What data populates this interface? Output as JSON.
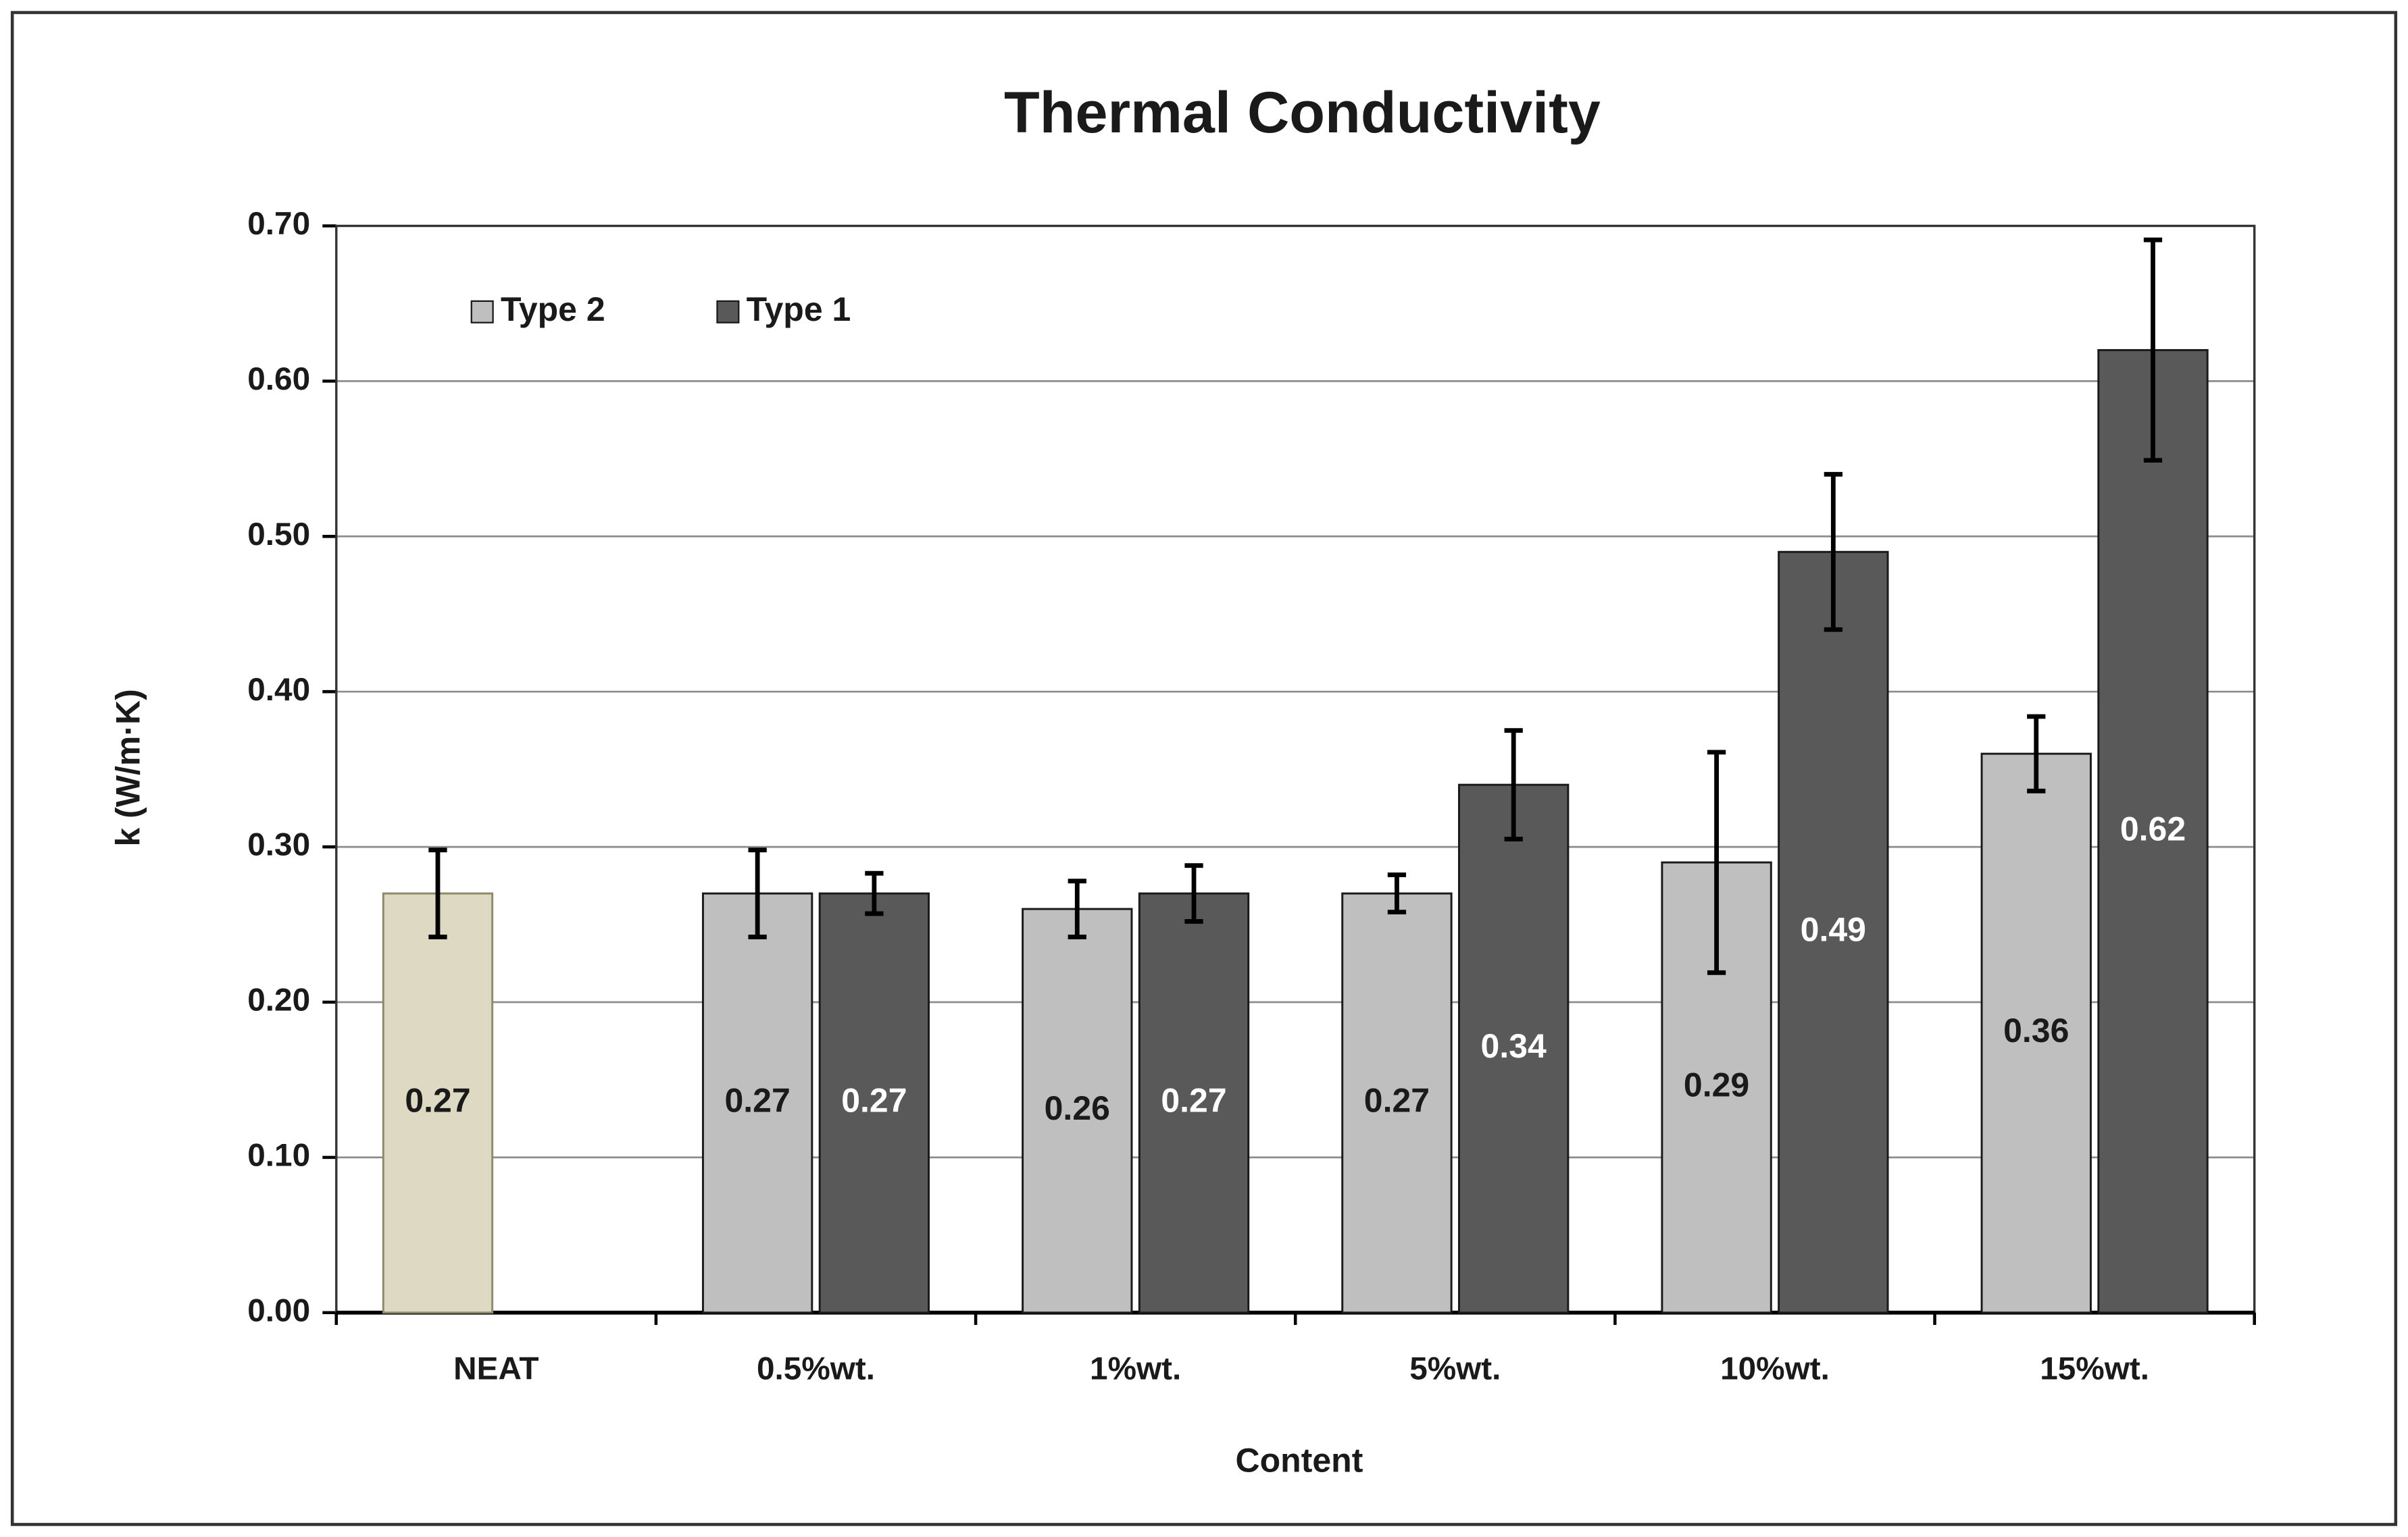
{
  "chart_data": {
    "type": "bar",
    "title": "Thermal Conductivity",
    "x_label": "Content",
    "y_label": "k (W/m·K)",
    "categories": [
      "NEAT",
      "0.5%wt.",
      "1%wt.",
      "5%wt.",
      "10%wt.",
      "15%wt."
    ],
    "series": [
      {
        "name": "Type 2",
        "color": "#bfbfbf",
        "colors": [
          "#ddd9c3",
          "#bfbfbf",
          "#bfbfbf",
          "#bfbfbf",
          "#bfbfbf",
          "#bfbfbf"
        ],
        "label_color": "#1a1a1a",
        "values": [
          0.27,
          0.27,
          0.26,
          0.27,
          0.29,
          0.36
        ],
        "errors": [
          0.028,
          0.028,
          0.018,
          0.012,
          0.071,
          0.024
        ]
      },
      {
        "name": "Type 1",
        "color": "#595959",
        "label_color": "#ffffff",
        "values": [
          null,
          0.27,
          0.27,
          0.34,
          0.49,
          0.62
        ],
        "errors": [
          null,
          0.013,
          0.018,
          0.035,
          0.05,
          0.071
        ]
      }
    ],
    "ylim": [
      0,
      0.7
    ],
    "yticks": [
      {
        "value": 0,
        "label": "0.00"
      },
      {
        "value": 0.1,
        "label": "0.10"
      },
      {
        "value": 0.2,
        "label": "0.20"
      },
      {
        "value": 0.3,
        "label": "0.30"
      },
      {
        "value": 0.4,
        "label": "0.40"
      },
      {
        "value": 0.5,
        "label": "0.50"
      },
      {
        "value": 0.6,
        "label": "0.60"
      },
      {
        "value": 0.7,
        "label": "0.70"
      }
    ],
    "grid": true,
    "legend": "top-left"
  }
}
